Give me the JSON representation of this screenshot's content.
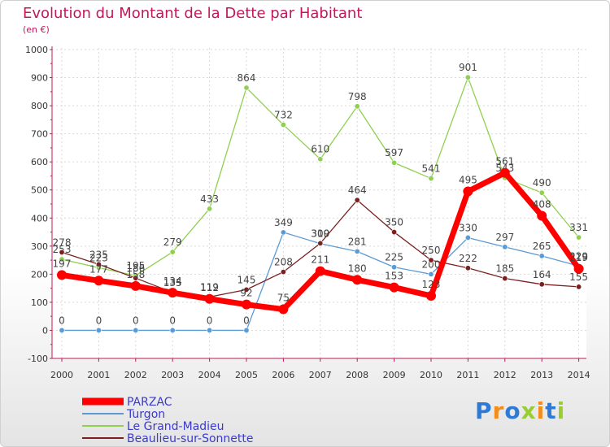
{
  "title": "Evolution du Montant de la Dette par Habitant",
  "unit": "(en €)",
  "logo": {
    "text": "Proxiti",
    "colors": [
      "#2e7bd6",
      "#f28c1a",
      "#2e7bd6",
      "#9acd32",
      "#f28c1a",
      "#2e7bd6",
      "#9acd32"
    ]
  },
  "chart_data": {
    "type": "line",
    "x": [
      "2000",
      "2001",
      "2002",
      "2003",
      "2004",
      "2005",
      "2006",
      "2007",
      "2008",
      "2009",
      "2010",
      "2011",
      "2012",
      "2013",
      "2014"
    ],
    "ylim": [
      -100,
      1000
    ],
    "yticks": [
      "-100",
      "0",
      "100",
      "200",
      "300",
      "400",
      "500",
      "600",
      "700",
      "800",
      "900",
      "1000"
    ],
    "grid": true,
    "legend_position": "bottom-left",
    "series": [
      {
        "name": "Turgon",
        "color": "#5b9bd5",
        "values": [
          0,
          0,
          0,
          0,
          0,
          0,
          349,
          309,
          281,
          225,
          200,
          330,
          297,
          265,
          229
        ],
        "labels": [
          "0",
          "0",
          "0",
          "0",
          "0",
          "0",
          "349",
          "309",
          "281",
          "225",
          "200",
          "330",
          "297",
          "265",
          "229"
        ]
      },
      {
        "name": "Le Grand-Madieu",
        "color": "#90d050",
        "values": [
          253,
          223,
          195,
          279,
          433,
          864,
          732,
          610,
          798,
          597,
          541,
          901,
          543,
          490,
          331
        ],
        "labels": [
          "253",
          "223",
          "195",
          "279",
          "433",
          "864",
          "732",
          "610",
          "798",
          "597",
          "541",
          "901",
          "543",
          "490",
          "331"
        ]
      },
      {
        "name": "Beaulieu-sur-Sonnette",
        "color": "#7b2020",
        "values": [
          278,
          235,
          186,
          135,
          119,
          145,
          208,
          310,
          464,
          350,
          250,
          222,
          185,
          164,
          155
        ],
        "labels": [
          "278",
          "235",
          "186",
          "135",
          "119",
          "145",
          "208",
          "310",
          "464",
          "350",
          "250",
          "222",
          "185",
          "164",
          "155"
        ]
      },
      {
        "name": "PARZAC",
        "color": "#ff0000",
        "values": [
          197,
          177,
          158,
          134,
          112,
          92,
          75,
          211,
          180,
          153,
          123,
          495,
          561,
          408,
          219
        ],
        "labels": [
          "197",
          "177",
          "158",
          "134",
          "112",
          "92",
          "75",
          "211",
          "180",
          "153",
          "123",
          "495",
          "561",
          "408",
          "219"
        ]
      }
    ]
  }
}
